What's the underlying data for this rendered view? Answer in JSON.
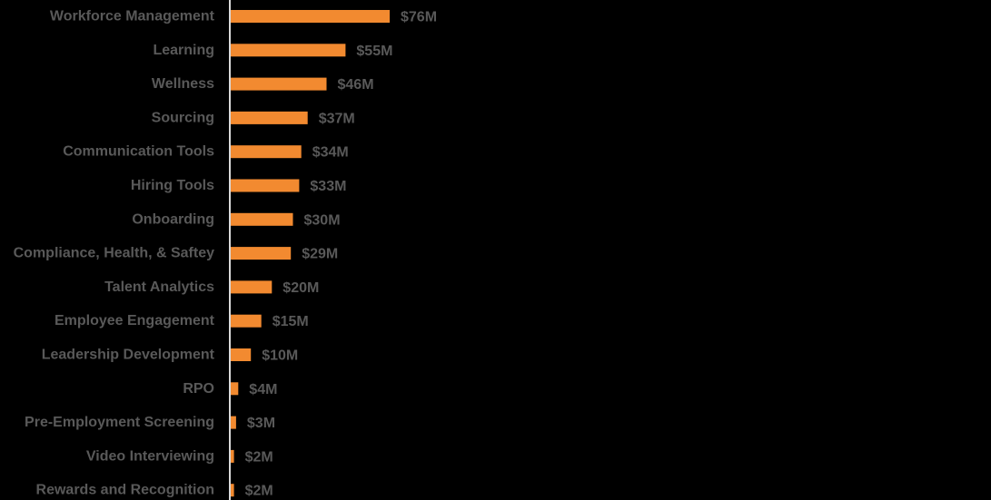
{
  "chart_data": {
    "type": "bar",
    "orientation": "horizontal",
    "title": "",
    "xlabel": "",
    "ylabel": "",
    "categories": [
      "Workforce Management",
      "Learning",
      "Wellness",
      "Sourcing",
      "Communication Tools",
      "Hiring Tools",
      "Onboarding",
      "Compliance, Health, & Saftey",
      "Talent Analytics",
      "Employee Engagement",
      "Leadership Development",
      "RPO",
      "Pre-Employment Screening",
      "Video Interviewing",
      "Rewards and Recognition"
    ],
    "values": [
      76,
      55,
      46,
      37,
      34,
      33,
      30,
      29,
      20,
      15,
      10,
      4,
      3,
      2,
      2
    ],
    "value_labels": [
      "$76M",
      "$55M",
      "$46M",
      "$37M",
      "$34M",
      "$33M",
      "$30M",
      "$29M",
      "$20M",
      "$15M",
      "$10M",
      "$4M",
      "$3M",
      "$2M",
      "$2M"
    ],
    "xlim": [
      0,
      76
    ],
    "grid": false,
    "legend": "none",
    "colors": {
      "bar": "#F28A30",
      "axis": "#D9D9D9",
      "text": "#595959",
      "background": "#000000"
    }
  }
}
